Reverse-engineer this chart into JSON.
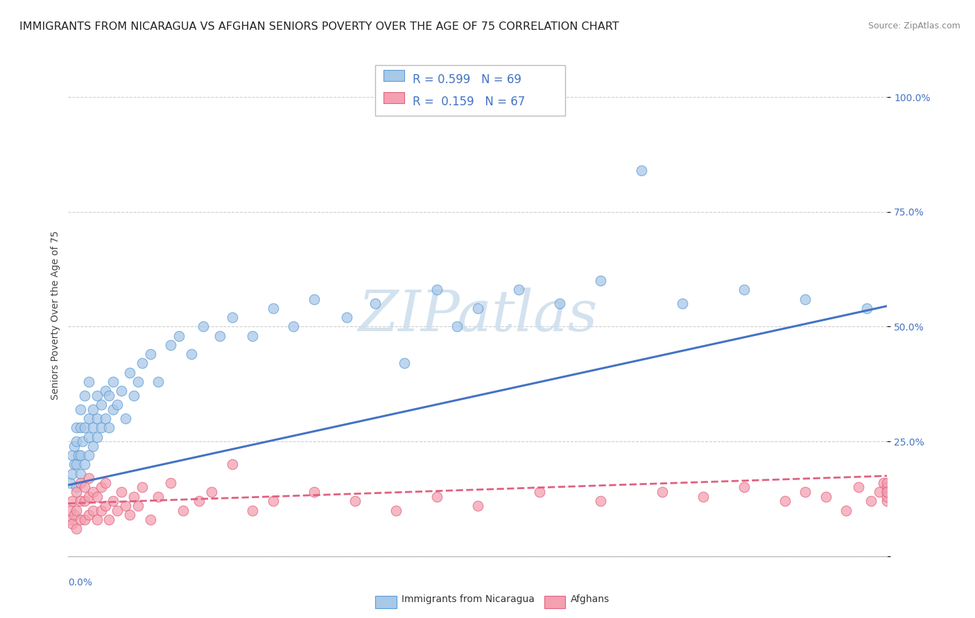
{
  "title": "IMMIGRANTS FROM NICARAGUA VS AFGHAN SENIORS POVERTY OVER THE AGE OF 75 CORRELATION CHART",
  "source": "Source: ZipAtlas.com",
  "ylabel": "Seniors Poverty Over the Age of 75",
  "legend_line1": "R = 0.599   N = 69",
  "legend_line2": "R =  0.159   N = 67",
  "legend_labels": [
    "Immigrants from Nicaragua",
    "Afghans"
  ],
  "blue_color": "#a8c8e8",
  "pink_color": "#f4a0b0",
  "blue_edge_color": "#5b9bd5",
  "pink_edge_color": "#e06080",
  "blue_line_color": "#4472c4",
  "pink_line_color": "#e06080",
  "text_blue": "#4472c4",
  "watermark_color": "#ccdded",
  "grid_color": "#cccccc",
  "blue_scatter_x": [
    0.0005,
    0.001,
    0.001,
    0.0015,
    0.0015,
    0.002,
    0.002,
    0.002,
    0.002,
    0.0025,
    0.003,
    0.003,
    0.003,
    0.003,
    0.0035,
    0.004,
    0.004,
    0.004,
    0.005,
    0.005,
    0.005,
    0.005,
    0.006,
    0.006,
    0.006,
    0.007,
    0.007,
    0.007,
    0.008,
    0.008,
    0.009,
    0.009,
    0.01,
    0.01,
    0.011,
    0.011,
    0.012,
    0.013,
    0.014,
    0.015,
    0.016,
    0.017,
    0.018,
    0.02,
    0.022,
    0.025,
    0.027,
    0.03,
    0.033,
    0.037,
    0.04,
    0.045,
    0.05,
    0.055,
    0.06,
    0.068,
    0.075,
    0.082,
    0.09,
    0.095,
    0.1,
    0.11,
    0.12,
    0.13,
    0.14,
    0.15,
    0.165,
    0.18,
    0.195
  ],
  "blue_scatter_y": [
    0.16,
    0.18,
    0.22,
    0.2,
    0.24,
    0.15,
    0.2,
    0.25,
    0.28,
    0.22,
    0.18,
    0.22,
    0.28,
    0.32,
    0.25,
    0.2,
    0.28,
    0.35,
    0.22,
    0.26,
    0.3,
    0.38,
    0.24,
    0.28,
    0.32,
    0.26,
    0.3,
    0.35,
    0.28,
    0.33,
    0.3,
    0.36,
    0.28,
    0.35,
    0.32,
    0.38,
    0.33,
    0.36,
    0.3,
    0.4,
    0.35,
    0.38,
    0.42,
    0.44,
    0.38,
    0.46,
    0.48,
    0.44,
    0.5,
    0.48,
    0.52,
    0.48,
    0.54,
    0.5,
    0.56,
    0.52,
    0.55,
    0.42,
    0.58,
    0.5,
    0.54,
    0.58,
    0.55,
    0.6,
    0.84,
    0.55,
    0.58,
    0.56,
    0.54
  ],
  "pink_scatter_x": [
    0.0003,
    0.0005,
    0.001,
    0.001,
    0.0015,
    0.002,
    0.002,
    0.002,
    0.003,
    0.003,
    0.003,
    0.004,
    0.004,
    0.004,
    0.005,
    0.005,
    0.005,
    0.006,
    0.006,
    0.007,
    0.007,
    0.008,
    0.008,
    0.009,
    0.009,
    0.01,
    0.011,
    0.012,
    0.013,
    0.014,
    0.015,
    0.016,
    0.017,
    0.018,
    0.02,
    0.022,
    0.025,
    0.028,
    0.032,
    0.035,
    0.04,
    0.045,
    0.05,
    0.06,
    0.07,
    0.08,
    0.09,
    0.1,
    0.115,
    0.13,
    0.145,
    0.155,
    0.165,
    0.175,
    0.18,
    0.185,
    0.19,
    0.193,
    0.196,
    0.198,
    0.199,
    0.2,
    0.2,
    0.2,
    0.2,
    0.2,
    0.2
  ],
  "pink_scatter_y": [
    0.08,
    0.1,
    0.07,
    0.12,
    0.09,
    0.06,
    0.1,
    0.14,
    0.08,
    0.12,
    0.16,
    0.08,
    0.12,
    0.15,
    0.09,
    0.13,
    0.17,
    0.1,
    0.14,
    0.08,
    0.13,
    0.1,
    0.15,
    0.11,
    0.16,
    0.08,
    0.12,
    0.1,
    0.14,
    0.11,
    0.09,
    0.13,
    0.11,
    0.15,
    0.08,
    0.13,
    0.16,
    0.1,
    0.12,
    0.14,
    0.2,
    0.1,
    0.12,
    0.14,
    0.12,
    0.1,
    0.13,
    0.11,
    0.14,
    0.12,
    0.14,
    0.13,
    0.15,
    0.12,
    0.14,
    0.13,
    0.1,
    0.15,
    0.12,
    0.14,
    0.16,
    0.12,
    0.14,
    0.15,
    0.13,
    0.16,
    0.14
  ],
  "blue_trend_x": [
    0.0,
    0.2
  ],
  "blue_trend_y": [
    0.155,
    0.545
  ],
  "pink_trend_x": [
    0.0,
    0.2
  ],
  "pink_trend_y": [
    0.115,
    0.175
  ],
  "xlim": [
    0.0,
    0.2
  ],
  "ylim": [
    0.0,
    1.05
  ],
  "y_ticks": [
    0.0,
    0.25,
    0.5,
    0.75,
    1.0
  ],
  "y_tick_labels": [
    "",
    "25.0%",
    "50.0%",
    "75.0%",
    "100.0%"
  ],
  "title_fontsize": 11.5,
  "source_fontsize": 9,
  "axis_label_fontsize": 10,
  "tick_fontsize": 10,
  "legend_fontsize": 12
}
